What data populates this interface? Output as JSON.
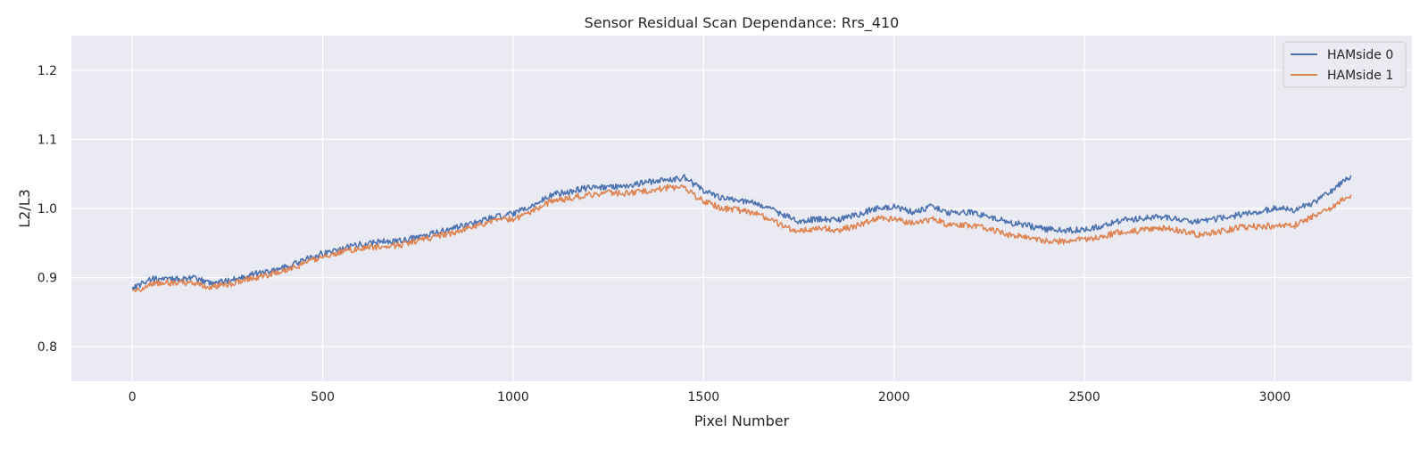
{
  "chart_data": {
    "type": "line",
    "title": "Sensor Residual Scan Dependance: Rrs_410",
    "xlabel": "Pixel Number",
    "ylabel": "L2/L3",
    "xlim": [
      -160,
      3360
    ],
    "ylim": [
      0.75,
      1.25
    ],
    "xticks": [
      0,
      500,
      1000,
      1500,
      2000,
      2500,
      3000
    ],
    "yticks": [
      0.8,
      0.9,
      1.0,
      1.1,
      1.2
    ],
    "xtick_labels": [
      "0",
      "500",
      "1000",
      "1500",
      "2000",
      "2500",
      "3000"
    ],
    "ytick_labels": [
      "0.8",
      "0.9",
      "1.0",
      "1.1",
      "1.2"
    ],
    "grid": true,
    "legend_position": "top-right",
    "series": [
      {
        "name": "HAMside 0",
        "color": "#4c72b0",
        "x": [
          0,
          50,
          100,
          150,
          200,
          250,
          300,
          350,
          400,
          450,
          500,
          550,
          600,
          650,
          700,
          750,
          800,
          850,
          900,
          950,
          1000,
          1050,
          1100,
          1150,
          1200,
          1250,
          1300,
          1350,
          1400,
          1450,
          1500,
          1550,
          1600,
          1650,
          1700,
          1750,
          1800,
          1850,
          1900,
          1950,
          2000,
          2050,
          2100,
          2150,
          2200,
          2250,
          2300,
          2350,
          2400,
          2450,
          2500,
          2550,
          2600,
          2650,
          2700,
          2750,
          2800,
          2850,
          2900,
          2950,
          3000,
          3050,
          3100,
          3150,
          3200
        ],
        "y": [
          0.885,
          0.898,
          0.897,
          0.9,
          0.893,
          0.895,
          0.903,
          0.908,
          0.915,
          0.925,
          0.935,
          0.942,
          0.948,
          0.952,
          0.953,
          0.958,
          0.965,
          0.972,
          0.98,
          0.987,
          0.992,
          1.003,
          1.02,
          1.025,
          1.03,
          1.031,
          1.033,
          1.038,
          1.041,
          1.045,
          1.025,
          1.015,
          1.012,
          1.005,
          0.993,
          0.982,
          0.985,
          0.983,
          0.99,
          1.0,
          1.002,
          0.995,
          1.003,
          0.993,
          0.995,
          0.988,
          0.98,
          0.975,
          0.97,
          0.968,
          0.97,
          0.975,
          0.983,
          0.985,
          0.988,
          0.984,
          0.981,
          0.985,
          0.99,
          0.995,
          1.0,
          0.998,
          1.008,
          1.025,
          1.048
        ]
      },
      {
        "name": "HAMside 1",
        "color": "#dd8452",
        "x": [
          0,
          50,
          100,
          150,
          200,
          250,
          300,
          350,
          400,
          450,
          500,
          550,
          600,
          650,
          700,
          750,
          800,
          850,
          900,
          950,
          1000,
          1050,
          1100,
          1150,
          1200,
          1250,
          1300,
          1350,
          1400,
          1450,
          1500,
          1550,
          1600,
          1650,
          1700,
          1750,
          1800,
          1850,
          1900,
          1950,
          2000,
          2050,
          2100,
          2150,
          2200,
          2250,
          2300,
          2350,
          2400,
          2450,
          2500,
          2550,
          2600,
          2650,
          2700,
          2750,
          2800,
          2850,
          2900,
          2950,
          3000,
          3050,
          3100,
          3150,
          3200
        ],
        "y": [
          0.878,
          0.892,
          0.892,
          0.893,
          0.886,
          0.89,
          0.898,
          0.903,
          0.91,
          0.92,
          0.93,
          0.938,
          0.942,
          0.945,
          0.947,
          0.953,
          0.96,
          0.966,
          0.975,
          0.982,
          0.985,
          0.995,
          1.01,
          1.015,
          1.02,
          1.023,
          1.022,
          1.025,
          1.03,
          1.03,
          1.01,
          1.0,
          0.997,
          0.99,
          0.978,
          0.966,
          0.972,
          0.968,
          0.975,
          0.985,
          0.985,
          0.978,
          0.985,
          0.975,
          0.976,
          0.97,
          0.962,
          0.958,
          0.953,
          0.952,
          0.956,
          0.96,
          0.967,
          0.968,
          0.972,
          0.968,
          0.962,
          0.966,
          0.972,
          0.974,
          0.975,
          0.975,
          0.988,
          1.002,
          1.02
        ]
      }
    ]
  }
}
